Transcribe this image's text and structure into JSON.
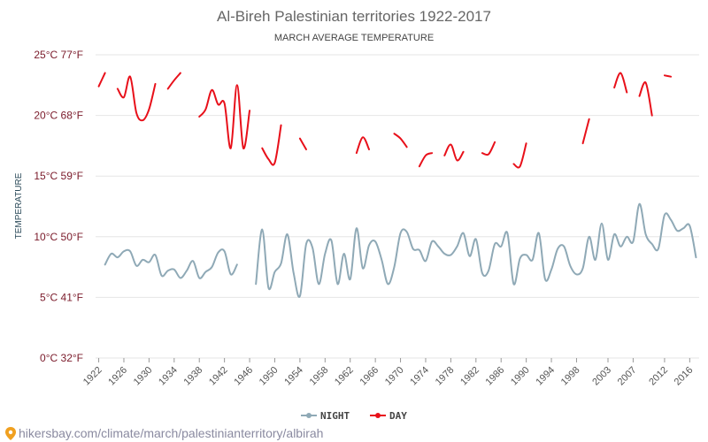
{
  "chart_data": {
    "type": "line",
    "title": "Al-Bireh Palestinian territories 1922-2017",
    "subtitle": "MARCH AVERAGE TEMPERATURE",
    "ylabel": "TEMPERATURE",
    "ylim": [
      0,
      25
    ],
    "yticks": [
      {
        "value": 0,
        "label": "0°C 32°F"
      },
      {
        "value": 5,
        "label": "5°C 41°F"
      },
      {
        "value": 10,
        "label": "10°C 50°F"
      },
      {
        "value": 15,
        "label": "15°C 59°F"
      },
      {
        "value": 20,
        "label": "20°C 68°F"
      },
      {
        "value": 25,
        "label": "25°C 77°F"
      }
    ],
    "xlim": [
      1921.5,
      2017.5
    ],
    "xticks": [
      1922,
      1926,
      1930,
      1934,
      1938,
      1942,
      1946,
      1950,
      1954,
      1958,
      1962,
      1966,
      1970,
      1974,
      1978,
      1982,
      1986,
      1990,
      1994,
      1998,
      2003,
      2007,
      2012,
      2016
    ],
    "grid": true,
    "legend_position": "bottom-center",
    "series": [
      {
        "name": "NIGHT",
        "color": "#8fa9b6",
        "x": [
          1923,
          1924,
          1925,
          1926,
          1927,
          1928,
          1929,
          1930,
          1931,
          1932,
          1933,
          1934,
          1935,
          1936,
          1937,
          1938,
          1939,
          1940,
          1941,
          1942,
          1943,
          1944,
          1945,
          null,
          1947,
          1948,
          1949,
          1950,
          1951,
          1952,
          1953,
          1954,
          1955,
          1956,
          1957,
          1958,
          1959,
          1960,
          1961,
          1962,
          1963,
          1964,
          1965,
          1966,
          1967,
          1968,
          1969,
          1970,
          1971,
          1972,
          1973,
          1974,
          1975,
          1976,
          1977,
          1978,
          1979,
          1980,
          1981,
          1982,
          1983,
          1984,
          1985,
          1986,
          1987,
          1988,
          1989,
          1990,
          1991,
          1992,
          1993,
          1994,
          1995,
          1996,
          1997,
          1998,
          1999,
          2000,
          2001,
          2002,
          2003,
          2004,
          2005,
          2006,
          2007,
          2008,
          2009,
          2010,
          2011,
          2012,
          2013,
          2014,
          2015,
          2016,
          2017
        ],
        "values": [
          7.7,
          8.6,
          8.3,
          8.8,
          8.8,
          7.6,
          8.1,
          7.9,
          8.5,
          6.8,
          7.2,
          7.3,
          6.6,
          7.2,
          8.0,
          6.6,
          7.1,
          7.5,
          8.7,
          8.8,
          6.9,
          7.7,
          null,
          null,
          6.1,
          10.6,
          5.8,
          7.1,
          7.8,
          10.2,
          7.0,
          5.1,
          9.4,
          9.1,
          6.1,
          8.6,
          9.7,
          6.1,
          8.6,
          6.5,
          10.7,
          7.4,
          9.3,
          9.6,
          8.1,
          6.1,
          7.5,
          10.3,
          10.4,
          9.0,
          8.9,
          8.0,
          9.6,
          9.2,
          8.6,
          8.5,
          9.2,
          10.3,
          8.4,
          9.8,
          7.0,
          7.2,
          9.4,
          9.2,
          10.3,
          6.1,
          8.2,
          8.5,
          8.1,
          10.3,
          6.5,
          7.3,
          9.0,
          9.2,
          7.6,
          6.9,
          7.4,
          10.0,
          8.1,
          11.1,
          8.1,
          10.2,
          9.2,
          10.0,
          9.6,
          12.7,
          10.2,
          9.4,
          9.0,
          11.8,
          11.4,
          10.5,
          10.7,
          10.9,
          8.3
        ]
      },
      {
        "name": "DAY",
        "color": "#e8101a",
        "x": [
          1922,
          1923,
          1924,
          null,
          1925,
          1926,
          1927,
          1928,
          1929,
          1930,
          1931,
          null,
          1933,
          1934,
          1935,
          null,
          1938,
          1939,
          1940,
          1941,
          1942,
          1943,
          1944,
          1945,
          1946,
          null,
          1948,
          1949,
          1950,
          1951,
          null,
          1954,
          1955,
          null,
          1963,
          1964,
          1965,
          null,
          1969,
          1970,
          1971,
          null,
          1973,
          1974,
          1975,
          null,
          1977,
          1978,
          1979,
          1980,
          null,
          1983,
          1984,
          1985,
          null,
          1988,
          1989,
          1990,
          null,
          1999,
          2000,
          null,
          2004,
          2005,
          2006,
          null,
          2008,
          2009,
          2010,
          null,
          2012,
          2013
        ],
        "values": [
          22.4,
          23.5,
          null,
          null,
          22.2,
          21.5,
          23.2,
          20.2,
          19.6,
          20.5,
          22.6,
          null,
          22.2,
          22.9,
          23.5,
          null,
          19.9,
          20.5,
          22.1,
          20.9,
          21.0,
          17.3,
          22.5,
          17.3,
          20.4,
          null,
          17.3,
          16.4,
          16.1,
          19.2,
          null,
          18.1,
          17.2,
          null,
          16.9,
          18.2,
          17.2,
          null,
          18.5,
          18.1,
          17.4,
          null,
          15.8,
          16.7,
          16.9,
          null,
          16.7,
          17.6,
          16.3,
          17.0,
          null,
          16.9,
          16.8,
          17.8,
          null,
          16.0,
          15.8,
          17.7,
          null,
          17.7,
          19.7,
          null,
          22.3,
          23.5,
          21.9,
          null,
          21.6,
          22.7,
          20.0,
          null,
          23.3,
          23.2
        ]
      }
    ]
  },
  "footer": {
    "text": "hikersbay.com/climate/march/palestinianterritory/albirah"
  }
}
